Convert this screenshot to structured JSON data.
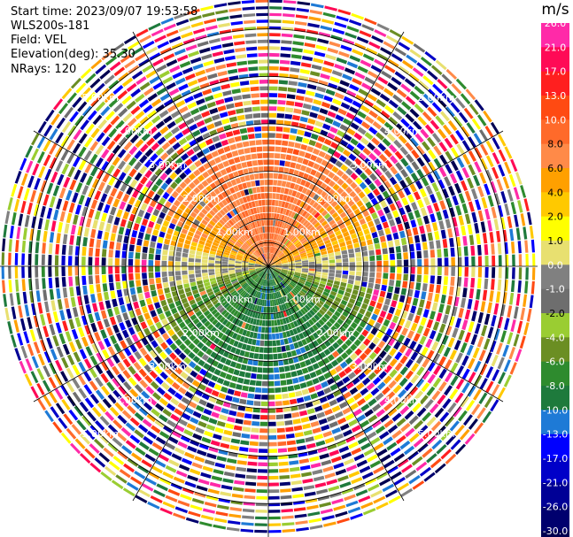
{
  "info": {
    "start_time": "Start time: 2023/09/07 19:53:58",
    "instrument": "WLS200s-181",
    "field": "Field: VEL",
    "elevation": "Elevation(deg): 35.30",
    "nrays": "NRays: 120"
  },
  "colorbar": {
    "unit": "m/s",
    "ticks": [
      "26.0",
      "21.0",
      "17.0",
      "13.0",
      "10.0",
      "8.0",
      "6.0",
      "4.0",
      "2.0",
      "1.0",
      "0.0",
      "-1.0",
      "-2.0",
      "-4.0",
      "-6.0",
      "-8.0",
      "-10.0",
      "-13.0",
      "-17.0",
      "-21.0",
      "-26.0",
      "-30.0"
    ],
    "colors": [
      "#ff2aa8",
      "#ff0a56",
      "#ff1f1f",
      "#ff4a12",
      "#ff6a2a",
      "#ff8a48",
      "#ffa000",
      "#ffc900",
      "#ffff00",
      "#e8e070",
      "#808080",
      "#6e6e6e",
      "#9acd32",
      "#6b8e23",
      "#2e8b2e",
      "#1e7a3c",
      "#1e7ad6",
      "#0000ff",
      "#0000c8",
      "#000096",
      "#00006e",
      "#000050"
    ]
  },
  "chart_data": {
    "type": "heatmap",
    "projection": "PPI (polar)",
    "field": "VEL",
    "units": "m/s",
    "value_range": [
      -30.0,
      26.0
    ],
    "rays": 120,
    "range_rings_km": [
      1.0,
      2.0,
      3.0,
      4.0,
      5.0
    ],
    "ring_labels": [
      "1.00km",
      "2.00km",
      "3.00km",
      "4.00km",
      "5.00km"
    ],
    "max_range_km": 5.7,
    "pattern": {
      "upper_sector": "positive velocities (orange/yellow, 2 to 10 m/s)",
      "lower_sector": "negative velocities (green to blue, -2 to -10 m/s)",
      "near_horizontal": "near zero (gray)",
      "beyond_about_2.5km": "noise, random colors"
    }
  }
}
